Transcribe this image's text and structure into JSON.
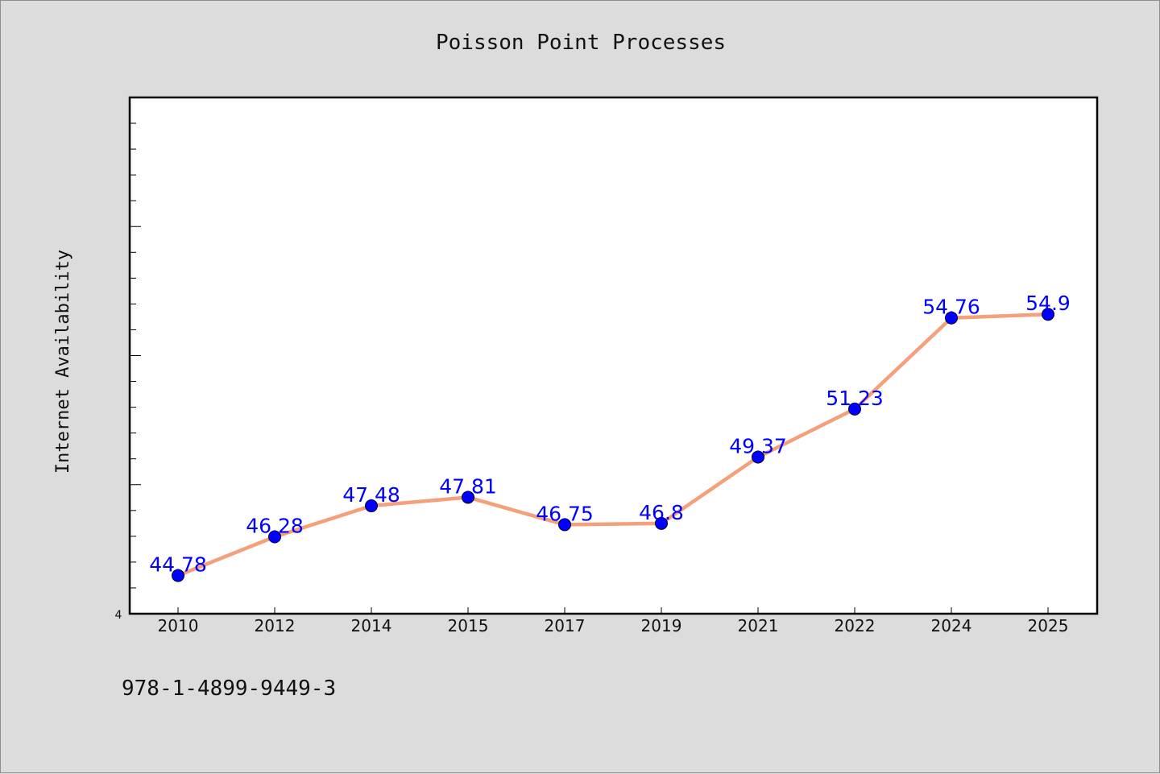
{
  "chart_data": {
    "type": "line",
    "title": "Poisson Point Processes",
    "xlabel": "",
    "ylabel": "Internet Availability",
    "categories": [
      "2010",
      "2012",
      "2014",
      "2015",
      "2017",
      "2019",
      "2021",
      "2022",
      "2024",
      "2025"
    ],
    "series": [
      {
        "values": [
          44.78,
          46.28,
          47.48,
          47.81,
          46.75,
          46.8,
          49.37,
          51.23,
          54.76,
          54.9
        ]
      }
    ],
    "data_labels": [
      "44.78",
      "46.28",
      "47.48",
      "47.81",
      "46.75",
      "46.8",
      "49.37",
      "51.23",
      "54.76",
      "54.9"
    ],
    "y_tick_label": "4",
    "ylim": [
      43.3,
      63.3
    ],
    "grid": false,
    "legend": "none",
    "colors": {
      "line": "#f4a07a",
      "marker": "#0000ff",
      "label": "#0000ff",
      "background": "#dcdcdc",
      "plot_background": "#ffffff"
    }
  },
  "footer": {
    "isbn": "978-1-4899-9449-3"
  }
}
